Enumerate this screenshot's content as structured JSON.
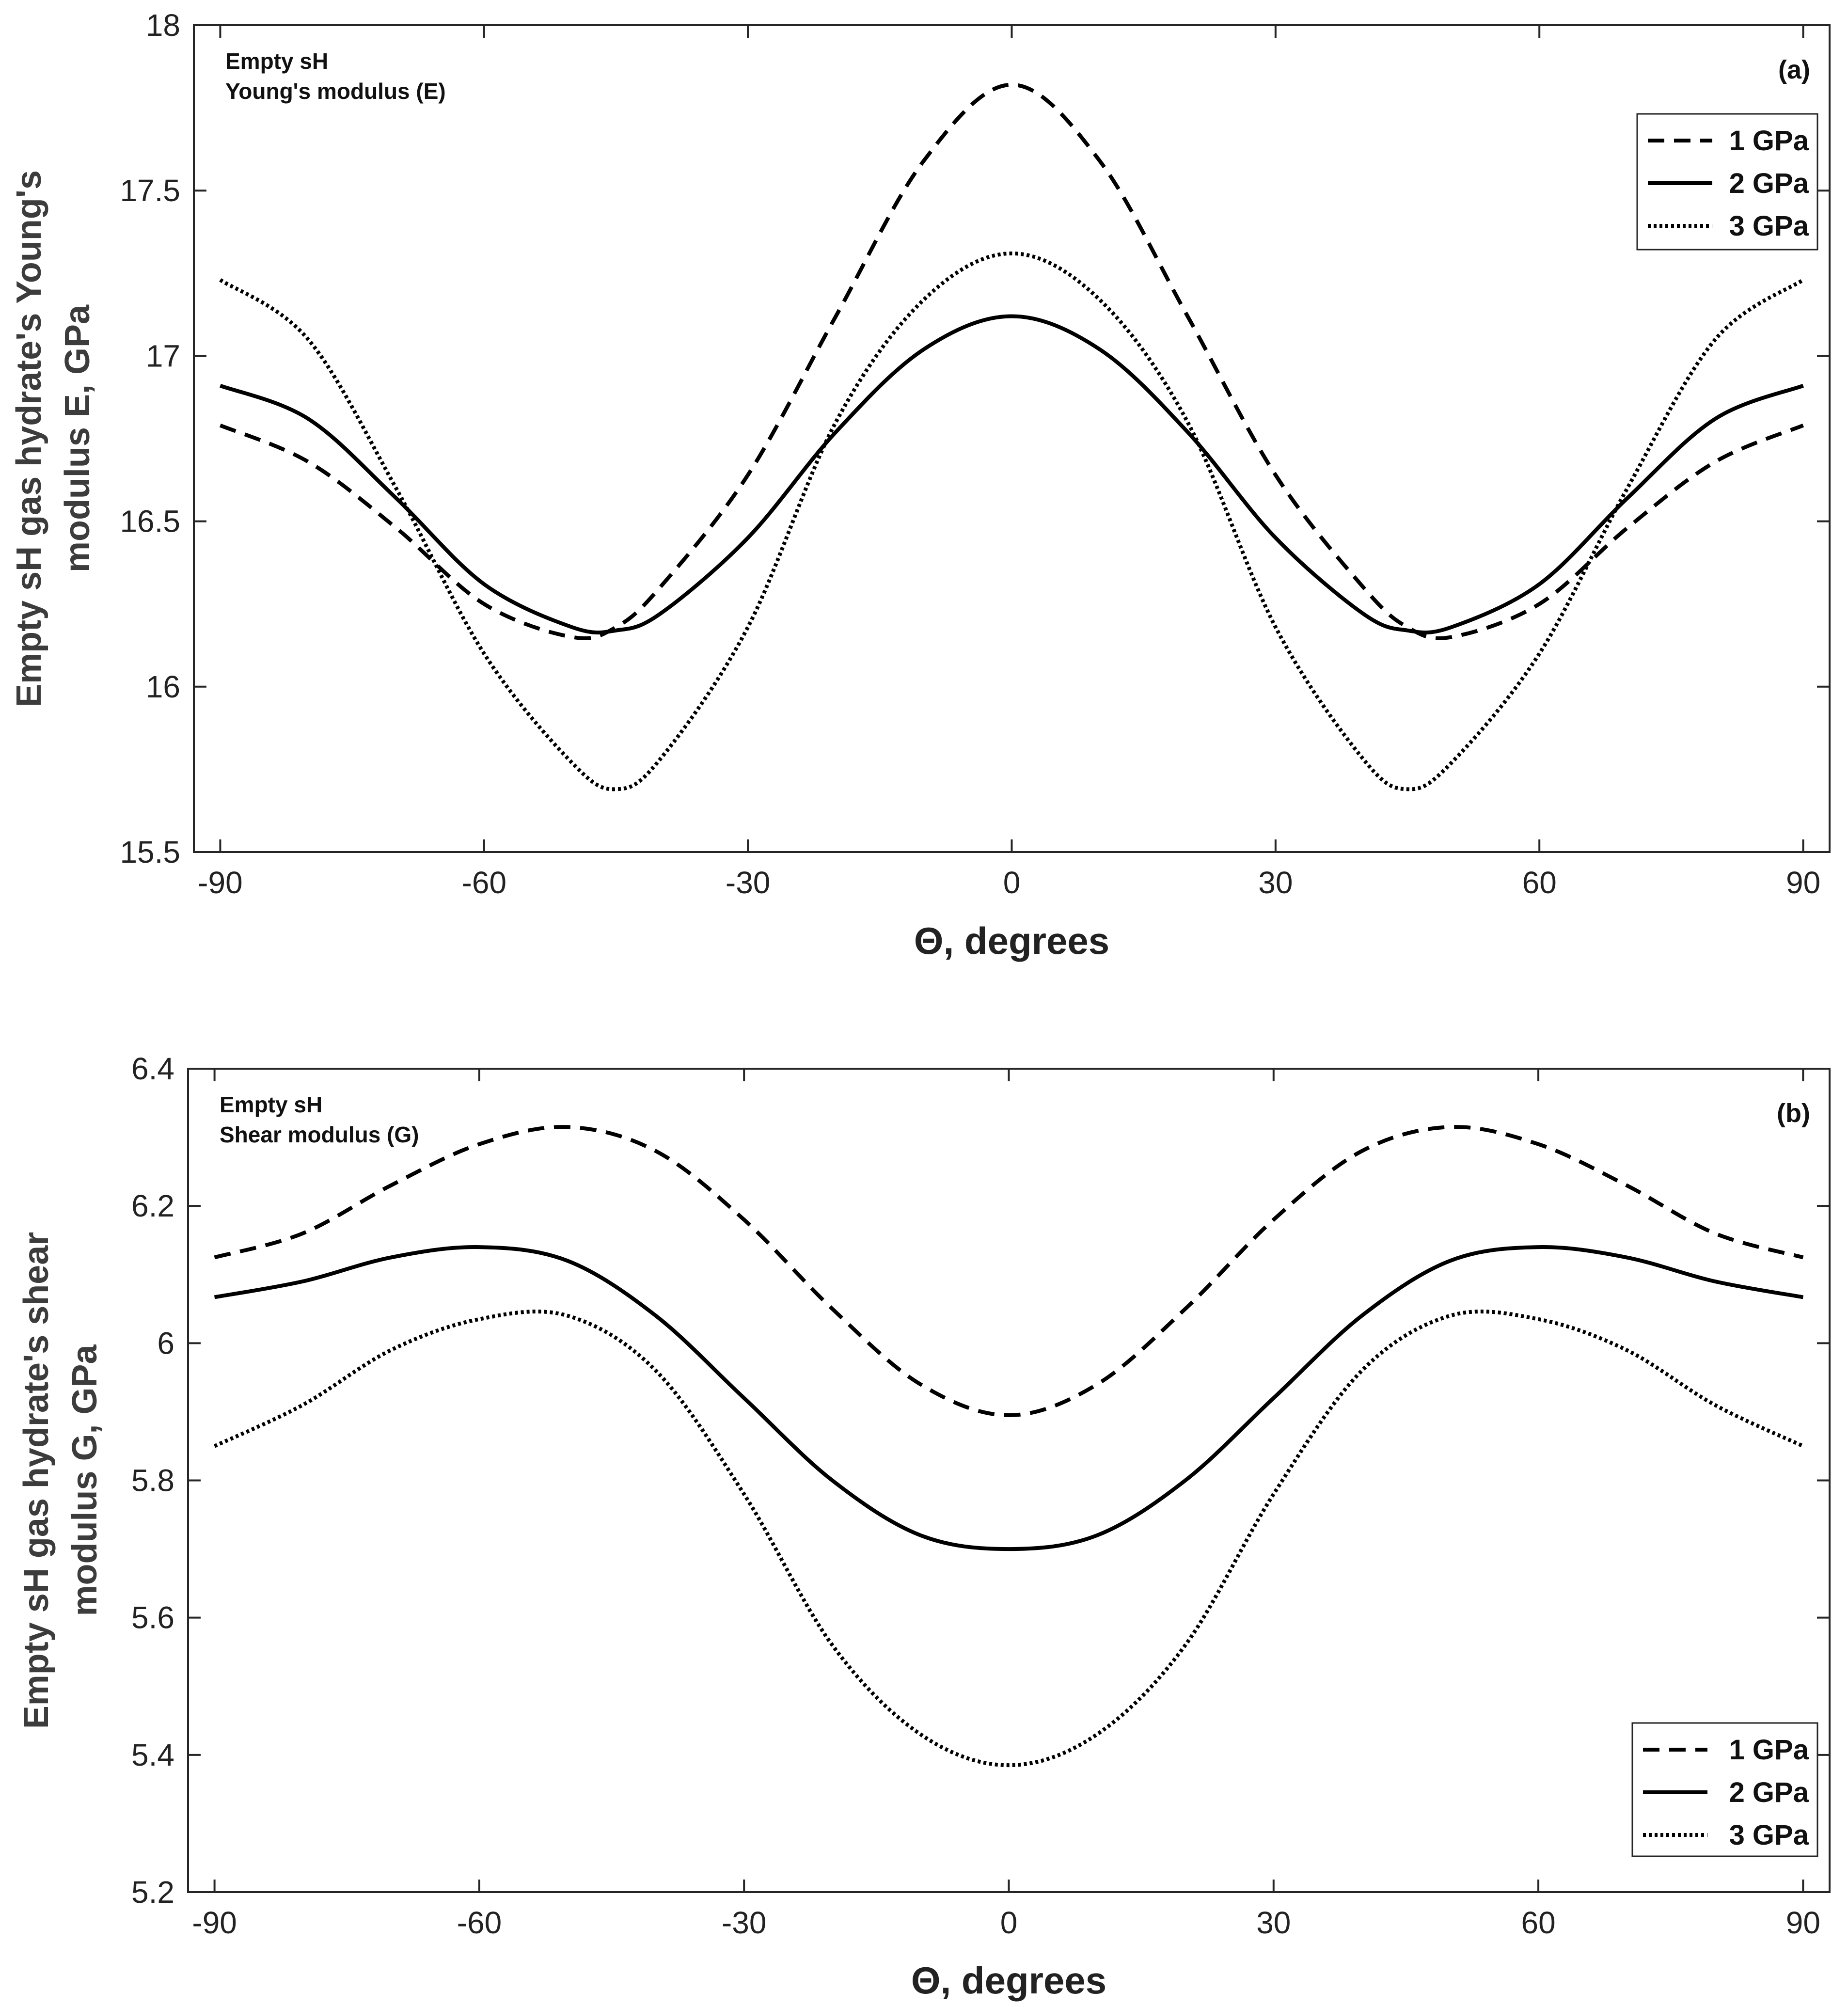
{
  "chart_data": [
    {
      "type": "line",
      "panel_label": "(a)",
      "annotation": [
        "Empty sH",
        "Young's modulus (E)"
      ],
      "xlabel": "Θ, degrees",
      "ylabel_lines": [
        "Empty sH gas hydrate's Young's",
        "modulus E, GPa"
      ],
      "xlim": [
        -93,
        93
      ],
      "ylim": [
        15.5,
        18
      ],
      "xticks": [
        -90,
        -60,
        -30,
        0,
        30,
        60,
        90
      ],
      "yticks": [
        15.5,
        16,
        16.5,
        17,
        17.5,
        18
      ],
      "ytick_labels": [
        "15.5",
        "16",
        "16.5",
        "17",
        "17.5",
        "18"
      ],
      "legend_position": "top-right",
      "x": [
        -90,
        -80,
        -70,
        -60,
        -50,
        -45,
        -40,
        -30,
        -20,
        -10,
        0,
        10,
        20,
        30,
        40,
        45,
        50,
        60,
        70,
        80,
        90
      ],
      "series": [
        {
          "name": "1 GPa",
          "style": "dashed",
          "values": [
            16.79,
            16.68,
            16.48,
            16.25,
            16.15,
            16.18,
            16.3,
            16.64,
            17.12,
            17.59,
            17.82,
            17.59,
            17.12,
            16.64,
            16.3,
            16.18,
            16.15,
            16.25,
            16.48,
            16.68,
            16.79
          ]
        },
        {
          "name": "2 GPa",
          "style": "solid",
          "values": [
            16.91,
            16.81,
            16.57,
            16.31,
            16.18,
            16.17,
            16.22,
            16.45,
            16.77,
            17.02,
            17.12,
            17.02,
            16.77,
            16.45,
            16.22,
            16.17,
            16.18,
            16.31,
            16.57,
            16.81,
            16.91
          ]
        },
        {
          "name": "3 GPa",
          "style": "dotted",
          "values": [
            17.23,
            17.05,
            16.6,
            16.1,
            15.77,
            15.69,
            15.78,
            16.18,
            16.8,
            17.17,
            17.31,
            17.17,
            16.8,
            16.18,
            15.78,
            15.69,
            15.77,
            16.1,
            16.6,
            17.05,
            17.23
          ]
        }
      ]
    },
    {
      "type": "line",
      "panel_label": "(b)",
      "annotation": [
        "Empty sH",
        "Shear modulus (G)"
      ],
      "xlabel": "Θ, degrees",
      "ylabel_lines": [
        "Empty sH gas hydrate's shear",
        "modulus G, GPa"
      ],
      "xlim": [
        -93,
        93
      ],
      "ylim": [
        5.2,
        6.4
      ],
      "xticks": [
        -90,
        -60,
        -30,
        0,
        30,
        60,
        90
      ],
      "yticks": [
        5.2,
        5.4,
        5.6,
        5.8,
        6.0,
        6.2,
        6.4
      ],
      "ytick_labels": [
        "5.2",
        "5.4",
        "5.6",
        "5.8",
        "6",
        "6.2",
        "6.4"
      ],
      "legend_position": "bottom-right",
      "x": [
        -90,
        -80,
        -70,
        -60,
        -50,
        -40,
        -30,
        -20,
        -10,
        0,
        10,
        20,
        30,
        40,
        50,
        60,
        70,
        80,
        90
      ],
      "series": [
        {
          "name": "1 GPa",
          "style": "dashed",
          "values": [
            6.125,
            6.16,
            6.23,
            6.29,
            6.315,
            6.28,
            6.18,
            6.05,
            5.94,
            5.895,
            5.94,
            6.05,
            6.18,
            6.28,
            6.315,
            6.29,
            6.23,
            6.16,
            6.125
          ]
        },
        {
          "name": "2 GPa",
          "style": "solid",
          "values": [
            6.067,
            6.09,
            6.125,
            6.14,
            6.12,
            6.04,
            5.92,
            5.8,
            5.72,
            5.7,
            5.72,
            5.8,
            5.92,
            6.04,
            6.12,
            6.14,
            6.125,
            6.09,
            6.067
          ]
        },
        {
          "name": "3 GPa",
          "style": "dotted",
          "values": [
            5.85,
            5.91,
            5.99,
            6.035,
            6.04,
            5.96,
            5.78,
            5.56,
            5.43,
            5.385,
            5.43,
            5.56,
            5.78,
            5.96,
            6.04,
            6.035,
            5.99,
            5.91,
            5.85
          ]
        }
      ]
    }
  ]
}
